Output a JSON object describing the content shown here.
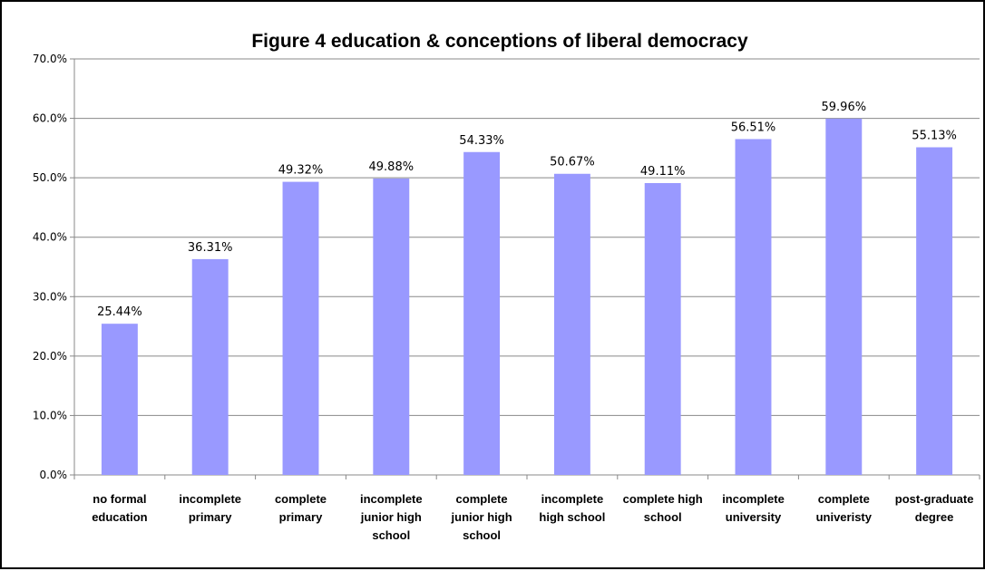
{
  "chart_data": {
    "type": "bar",
    "title": "Figure 4 education & conceptions of liberal democracy",
    "categories": [
      [
        "no formal",
        "education"
      ],
      [
        "incomplete",
        "primary"
      ],
      [
        "complete",
        "primary"
      ],
      [
        "incomplete",
        "junior high",
        "school"
      ],
      [
        "complete",
        "junior high",
        "school"
      ],
      [
        "incomplete",
        "high school"
      ],
      [
        "complete high",
        "school"
      ],
      [
        "incomplete",
        "university"
      ],
      [
        "complete",
        "univeristy"
      ],
      [
        "post-graduate",
        "degree"
      ]
    ],
    "values": [
      25.44,
      36.31,
      49.32,
      49.88,
      54.33,
      50.67,
      49.11,
      56.51,
      59.96,
      55.13
    ],
    "data_labels": [
      "25.44%",
      "36.31%",
      "49.32%",
      "49.88%",
      "54.33%",
      "50.67%",
      "49.11%",
      "56.51%",
      "59.96%",
      "55.13%"
    ],
    "ylim": [
      0,
      70
    ],
    "yticks": [
      0,
      10,
      20,
      30,
      40,
      50,
      60,
      70
    ],
    "ytick_labels": [
      "0.0%",
      "10.0%",
      "20.0%",
      "30.0%",
      "40.0%",
      "50.0%",
      "60.0%",
      "70.0%"
    ],
    "grid": true,
    "legend": "none",
    "bar_color": "#9999ff",
    "xlabel": "",
    "ylabel": ""
  }
}
